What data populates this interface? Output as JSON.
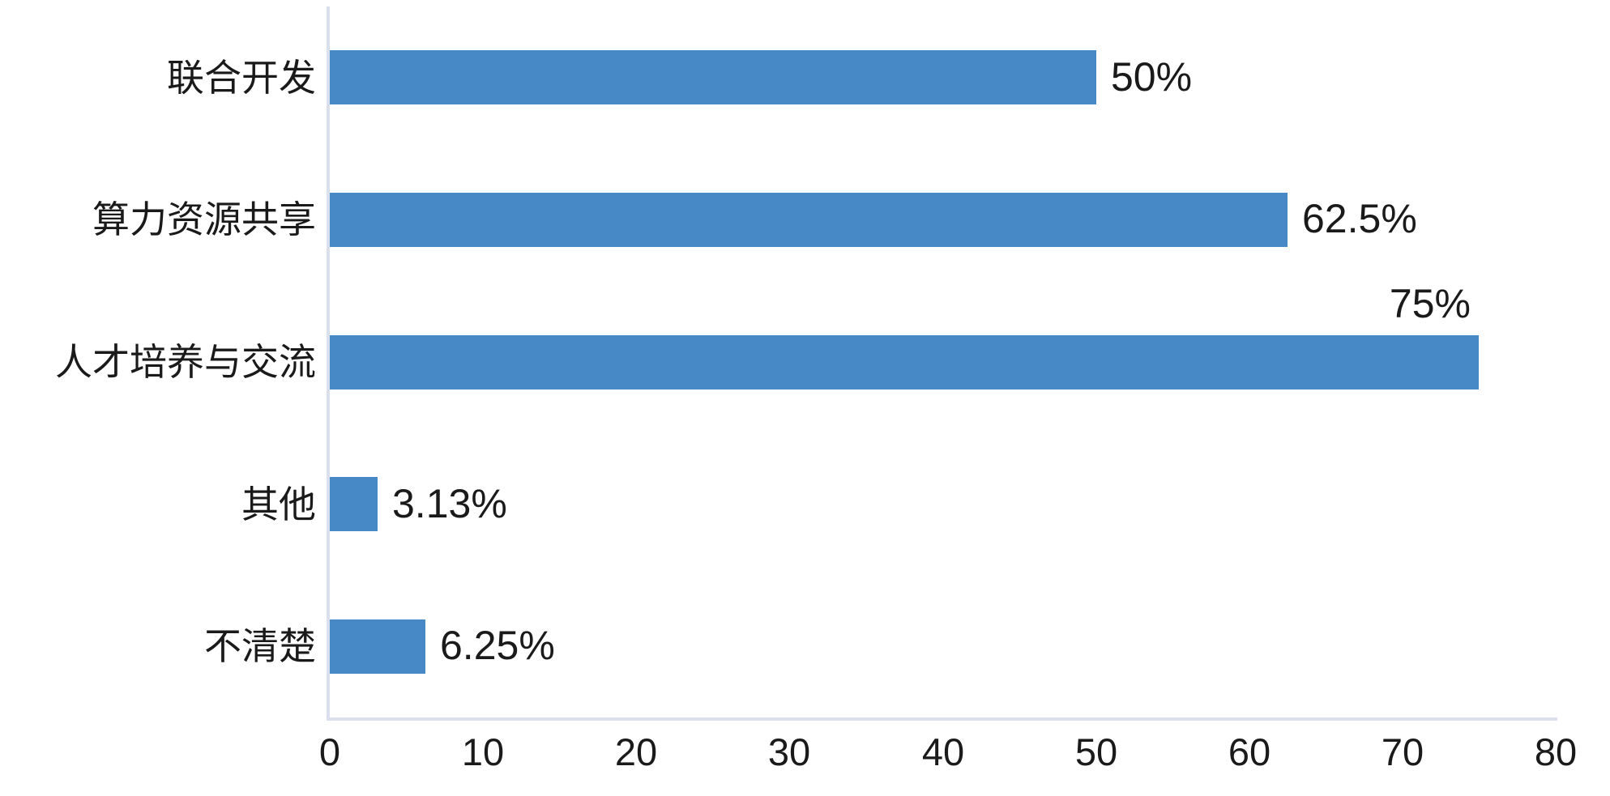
{
  "chart_data": {
    "type": "bar",
    "orientation": "horizontal",
    "title": "",
    "xlabel": "",
    "ylabel": "",
    "categories": [
      "联合开发",
      "算力资源共享",
      "人才培养与交流",
      "其他",
      "不清楚"
    ],
    "values": [
      50,
      62.5,
      75,
      3.13,
      6.25
    ],
    "value_labels": [
      "50%",
      "62.5%",
      "75%",
      "3.13%",
      "6.25%"
    ],
    "xlim": [
      0,
      80
    ],
    "x_ticks": [
      0,
      10,
      20,
      30,
      40,
      50,
      60,
      70,
      80
    ],
    "x_tick_labels": [
      "0",
      "10",
      "20",
      "30",
      "40",
      "50",
      "60",
      "70",
      "80"
    ],
    "grid": false,
    "legend": null,
    "colors": {
      "bar": "#4689C6",
      "axis_line": "#D9DFEC",
      "text": "#1A1A1A",
      "background": "#FFFFFF"
    }
  }
}
